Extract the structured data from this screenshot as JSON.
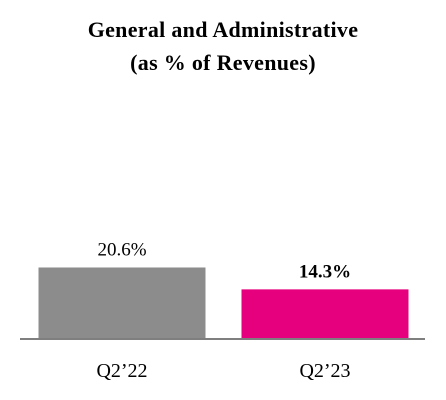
{
  "chart_data": {
    "type": "bar",
    "title_lines": [
      "General and Administrative",
      "(as % of Revenues)"
    ],
    "categories": [
      "Q2’22",
      "Q2’23"
    ],
    "values": [
      20.6,
      14.3
    ],
    "data_labels": [
      "20.6%",
      "14.3%"
    ],
    "bar_colors": [
      "#8c8c8c",
      "#e6007e"
    ],
    "bold_labels": [
      false,
      true
    ],
    "xlabel": "",
    "ylabel": "",
    "ylim": [
      0,
      70
    ],
    "grid": false,
    "legend": "none"
  }
}
